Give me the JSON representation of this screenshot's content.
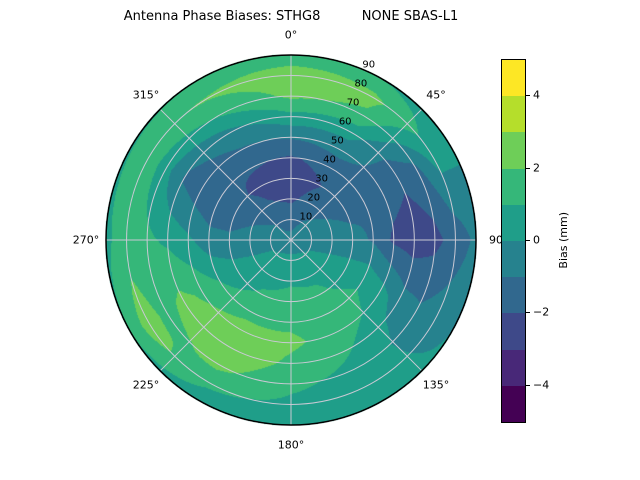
{
  "chart_data": {
    "type": "heatmap",
    "subtype": "polar-contourf",
    "title": "Antenna Phase Biases: STHG8          NONE SBAS-L1",
    "station": "STHG8",
    "signal": "NONE SBAS-L1",
    "angular_ticks": [
      {
        "label": "0°",
        "angle_deg": 0
      },
      {
        "label": "45°",
        "angle_deg": 45
      },
      {
        "label": "90",
        "angle_deg": 90
      },
      {
        "label": "135°",
        "angle_deg": 135
      },
      {
        "label": "180°",
        "angle_deg": 180
      },
      {
        "label": "225°",
        "angle_deg": 225
      },
      {
        "label": "270°",
        "angle_deg": 270
      },
      {
        "label": "315°",
        "angle_deg": 315
      }
    ],
    "radial_ticks": [
      {
        "label": "10",
        "value": 10
      },
      {
        "label": "20",
        "value": 20
      },
      {
        "label": "30",
        "value": 30
      },
      {
        "label": "40",
        "value": 40
      },
      {
        "label": "50",
        "value": 50
      },
      {
        "label": "60",
        "value": 60
      },
      {
        "label": "70",
        "value": 70
      },
      {
        "label": "80",
        "value": 80
      },
      {
        "label": "90",
        "value": 90
      }
    ],
    "radial_max": 90,
    "colorbar": {
      "label": "Bias (mm)",
      "vmin": -5,
      "vmax": 5,
      "ticks": [
        {
          "label": "4",
          "value": 4
        },
        {
          "label": "2",
          "value": 2
        },
        {
          "label": "0",
          "value": 0
        },
        {
          "label": "−2",
          "value": -2
        },
        {
          "label": "−4",
          "value": -4
        }
      ],
      "band_colors": [
        "#440154",
        "#482878",
        "#3e4989",
        "#31688e",
        "#26828e",
        "#1f9e89",
        "#35b779",
        "#6ece58",
        "#b5de2b",
        "#fde725"
      ]
    },
    "grid": {
      "azimuth_deg": [
        0,
        30,
        60,
        90,
        120,
        150,
        180,
        210,
        240,
        270,
        300,
        330
      ],
      "zenith_deg": [
        0,
        10,
        20,
        30,
        40,
        50,
        60,
        70,
        80,
        90
      ],
      "values": [
        [
          -0.8,
          -0.8,
          -0.8,
          -0.8,
          -0.8,
          -0.8,
          -0.8,
          -0.8,
          -0.8,
          -0.8,
          -0.8,
          -0.8
        ],
        [
          -1.3,
          -1.0,
          -0.6,
          -0.3,
          0.0,
          0.3,
          0.4,
          0.3,
          0.0,
          -0.4,
          -0.8,
          -1.2
        ],
        [
          -2.2,
          -1.6,
          -1.0,
          -0.4,
          0.2,
          0.8,
          0.9,
          0.7,
          0.2,
          -0.6,
          -1.2,
          -1.9
        ],
        [
          -2.6,
          -2.0,
          -1.3,
          -0.7,
          0.5,
          1.2,
          1.3,
          1.1,
          0.5,
          -0.8,
          -1.6,
          -2.3
        ],
        [
          -2.1,
          -1.6,
          -1.1,
          -1.1,
          0.8,
          1.7,
          1.8,
          1.6,
          1.0,
          -0.6,
          -1.9,
          -1.9
        ],
        [
          -0.9,
          -0.6,
          -1.5,
          -2.2,
          0.4,
          1.5,
          2.2,
          2.5,
          1.8,
          0.2,
          -1.6,
          -1.1
        ],
        [
          0.7,
          0.4,
          -1.8,
          -2.6,
          -0.5,
          1.0,
          1.8,
          2.8,
          2.3,
          0.8,
          -1.1,
          -0.3
        ],
        [
          2.2,
          1.8,
          -1.2,
          -2.3,
          -0.8,
          0.7,
          1.2,
          2.3,
          1.6,
          1.2,
          0.4,
          1.1
        ],
        [
          2.7,
          2.3,
          0.4,
          -1.6,
          -0.4,
          0.5,
          0.8,
          1.2,
          2.6,
          1.5,
          1.8,
          2.1
        ],
        [
          1.2,
          1.0,
          0.2,
          -0.8,
          0.0,
          0.3,
          0.4,
          0.5,
          1.0,
          0.8,
          0.9,
          1.0
        ]
      ]
    }
  }
}
